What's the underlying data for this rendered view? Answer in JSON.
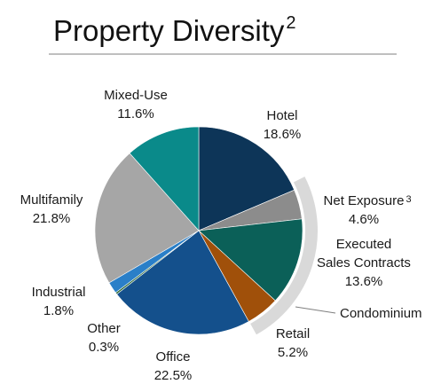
{
  "chart_data": {
    "type": "pie",
    "title": "Property Diversity",
    "title_note": "2",
    "categories": [
      "Hotel",
      "Net Exposure",
      "Executed Sales Contracts",
      "Retail",
      "Office",
      "Other",
      "Industrial",
      "Multifamily",
      "Mixed-Use"
    ],
    "category_notes": [
      null,
      "3",
      null,
      null,
      null,
      null,
      null,
      null,
      null
    ],
    "values": [
      18.6,
      4.6,
      13.6,
      5.2,
      22.5,
      0.3,
      1.8,
      21.8,
      11.6
    ],
    "value_labels": [
      "18.6%",
      "4.6%",
      "13.6%",
      "5.2%",
      "22.5%",
      "0.3%",
      "1.8%",
      "21.8%",
      "11.6%"
    ],
    "colors": [
      "#0d3558",
      "#8c8c8c",
      "#0b6058",
      "#a0500a",
      "#14508c",
      "#2f6b3a",
      "#2a7fc8",
      "#a6a6a6",
      "#0a8a8a"
    ],
    "annotation": "Condominium"
  }
}
